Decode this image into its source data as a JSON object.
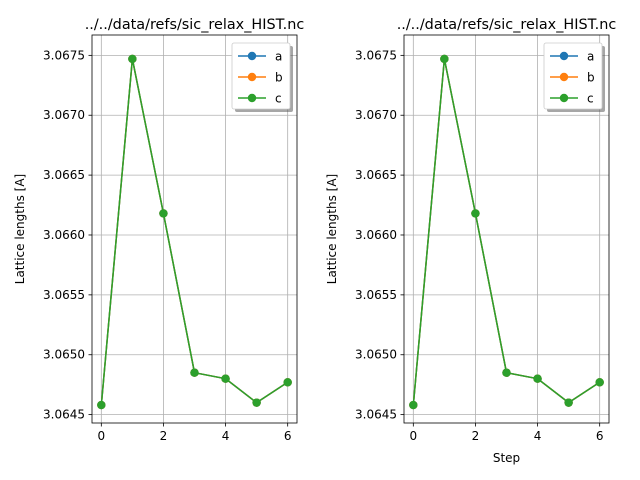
{
  "chart_data": [
    {
      "type": "line",
      "title": "../../data/refs/sic_relax_HIST.nc",
      "xlabel": "",
      "ylabel": "Lattice lengths [A]",
      "xlim": [
        -0.3,
        6.3
      ],
      "ylim": [
        3.06443,
        3.06767
      ],
      "xticks": [
        0,
        2,
        4,
        6
      ],
      "xtick_labels": [
        "0",
        "2",
        "4",
        "6"
      ],
      "yticks": [
        3.0645,
        3.065,
        3.0655,
        3.066,
        3.0665,
        3.067,
        3.0675
      ],
      "ytick_labels": [
        "3.0645",
        "3.0650",
        "3.0655",
        "3.0660",
        "3.0665",
        "3.0670",
        "3.0675"
      ],
      "grid": true,
      "legend": "top-right",
      "x": [
        0,
        1,
        2,
        3,
        4,
        5,
        6
      ],
      "series": [
        {
          "name": "a",
          "color": "#1f77b4",
          "values": [
            3.06458,
            3.06747,
            3.06618,
            3.06485,
            3.0648,
            3.0646,
            3.06477
          ]
        },
        {
          "name": "b",
          "color": "#ff7f0e",
          "values": [
            3.06458,
            3.06747,
            3.06618,
            3.06485,
            3.0648,
            3.0646,
            3.06477
          ]
        },
        {
          "name": "c",
          "color": "#2ca02c",
          "values": [
            3.06458,
            3.06747,
            3.06618,
            3.06485,
            3.0648,
            3.0646,
            3.06477
          ]
        }
      ]
    },
    {
      "type": "line",
      "title": "../../data/refs/sic_relax_HIST.nc",
      "xlabel": "Step",
      "ylabel": "Lattice lengths [A]",
      "xlim": [
        -0.3,
        6.3
      ],
      "ylim": [
        3.06443,
        3.06767
      ],
      "xticks": [
        0,
        2,
        4,
        6
      ],
      "xtick_labels": [
        "0",
        "2",
        "4",
        "6"
      ],
      "yticks": [
        3.0645,
        3.065,
        3.0655,
        3.066,
        3.0665,
        3.067,
        3.0675
      ],
      "ytick_labels": [
        "3.0645",
        "3.0650",
        "3.0655",
        "3.0660",
        "3.0665",
        "3.0670",
        "3.0675"
      ],
      "grid": true,
      "legend": "top-right",
      "x": [
        0,
        1,
        2,
        3,
        4,
        5,
        6
      ],
      "series": [
        {
          "name": "a",
          "color": "#1f77b4",
          "values": [
            3.06458,
            3.06747,
            3.06618,
            3.06485,
            3.0648,
            3.0646,
            3.06477
          ]
        },
        {
          "name": "b",
          "color": "#ff7f0e",
          "values": [
            3.06458,
            3.06747,
            3.06618,
            3.06485,
            3.0648,
            3.0646,
            3.06477
          ]
        },
        {
          "name": "c",
          "color": "#2ca02c",
          "values": [
            3.06458,
            3.06747,
            3.06618,
            3.06485,
            3.0648,
            3.0646,
            3.06477
          ]
        }
      ]
    }
  ]
}
